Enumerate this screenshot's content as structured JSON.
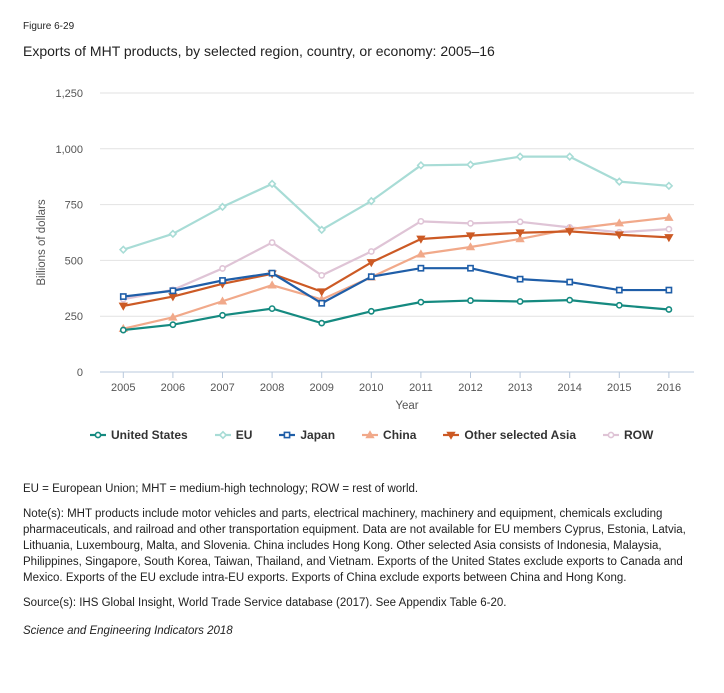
{
  "figure": {
    "label": "Figure 6-29",
    "title": "Exports of MHT products, by selected region, country, or economy: 2005–16"
  },
  "chart_data": {
    "type": "line",
    "title": "Exports of MHT products, by selected region, country, or economy: 2005–16",
    "xlabel": "Year",
    "ylabel": "Billions of dollars",
    "x": [
      "2005",
      "2006",
      "2007",
      "2008",
      "2009",
      "2010",
      "2011",
      "2012",
      "2013",
      "2014",
      "2015",
      "2016"
    ],
    "ylim": [
      0,
      1250
    ],
    "yticks": [
      0,
      250,
      500,
      750,
      1000,
      1250
    ],
    "ytick_labels": [
      "0",
      "250",
      "500",
      "750",
      "1,000",
      "1,250"
    ],
    "grid": true,
    "legend_position": "bottom",
    "series": [
      {
        "name": "United States",
        "color": "#158a80",
        "marker": "circle",
        "values": [
          188,
          212,
          254,
          284,
          219,
          272,
          313,
          320,
          316,
          322,
          299,
          280
        ]
      },
      {
        "name": "EU",
        "color": "#a8dcd6",
        "marker": "diamond",
        "values": [
          548,
          619,
          740,
          843,
          637,
          766,
          926,
          929,
          965,
          965,
          853,
          834
        ]
      },
      {
        "name": "Japan",
        "color": "#1f5ea8",
        "marker": "square",
        "values": [
          338,
          364,
          410,
          443,
          308,
          427,
          465,
          465,
          416,
          403,
          367,
          367
        ]
      },
      {
        "name": "China",
        "color": "#f1a98a",
        "marker": "triangle-up",
        "values": [
          194,
          245,
          317,
          389,
          325,
          425,
          528,
          560,
          596,
          640,
          667,
          692
        ]
      },
      {
        "name": "Other selected Asia",
        "color": "#cc5a25",
        "marker": "triangle-down",
        "values": [
          296,
          338,
          395,
          440,
          360,
          491,
          596,
          611,
          624,
          630,
          615,
          603
        ]
      },
      {
        "name": "ROW",
        "color": "#dfc4d6",
        "marker": "circle",
        "values": [
          326,
          368,
          464,
          580,
          433,
          540,
          675,
          666,
          673,
          648,
          626,
          640
        ]
      }
    ]
  },
  "notes": {
    "abbreviations": "EU = European Union; MHT = medium-high technology; ROW = rest of world.",
    "note": "Note(s): MHT products include motor vehicles and parts, electrical machinery, machinery and equipment, chemicals excluding pharmaceuticals, and railroad and other transportation equipment. Data are not available for EU members Cyprus, Estonia, Latvia, Lithuania, Luxembourg, Malta, and Slovenia. China includes Hong Kong. Other selected Asia consists of Indonesia, Malaysia, Philippines, Singapore, South Korea, Taiwan, Thailand, and Vietnam. Exports of the United States exclude exports to Canada and Mexico. Exports of the EU exclude intra-EU exports. Exports of China exclude exports between China and Hong Kong.",
    "source": "Source(s): IHS Global Insight, World Trade Service database (2017). See Appendix Table 6-20.",
    "credit": "Science and Engineering Indicators 2018"
  }
}
